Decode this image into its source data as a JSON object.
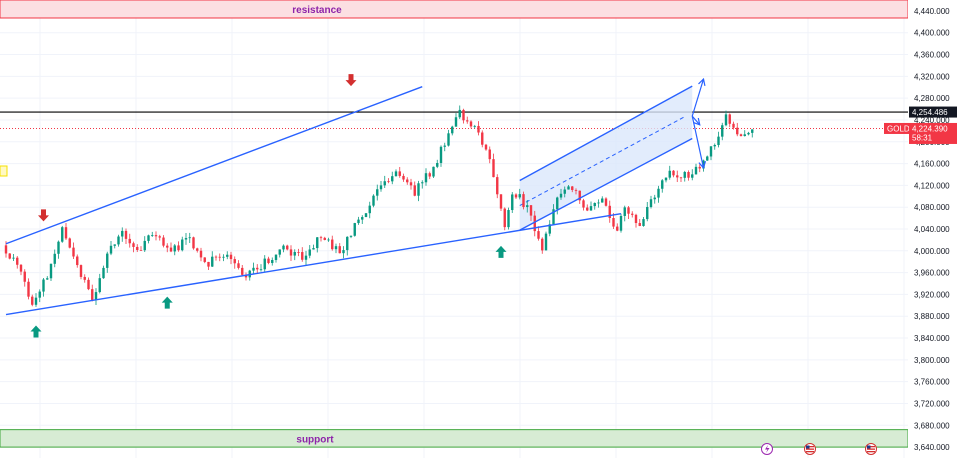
{
  "chart_data": {
    "type": "candlestick",
    "symbol": "GOLD",
    "price_axis": {
      "ylim": [
        3620,
        4460
      ],
      "ticks": [
        "4,440.000",
        "4,400.000",
        "4,360.000",
        "4,320.000",
        "4,280.000",
        "4,240.000",
        "4,200.000",
        "4,160.000",
        "4,120.000",
        "4,080.000",
        "4,040.000",
        "4,000.000",
        "3,960.000",
        "3,920.000",
        "3,880.000",
        "3,840.000",
        "3,800.000",
        "3,760.000",
        "3,720.000",
        "3,680.000",
        "3,640.000"
      ],
      "tick_values": [
        4440,
        4400,
        4360,
        4320,
        4280,
        4240,
        4200,
        4160,
        4120,
        4080,
        4040,
        4000,
        3960,
        3920,
        3880,
        3840,
        3800,
        3760,
        3720,
        3680,
        3640
      ]
    },
    "current_price": {
      "label": "4,224.390",
      "value": 4224.39,
      "countdown": "58:31",
      "color": "#f23645"
    },
    "level_line": {
      "label": "4,254.486",
      "value": 4254.486
    },
    "zones": {
      "resistance": {
        "label": "resistance",
        "from": 4427,
        "to": 4460,
        "fill": "#fcdfe2",
        "border": "#f23645"
      },
      "support": {
        "label": "support",
        "from": 3640,
        "to": 3672,
        "fill": "#d7ecd4",
        "border": "#3fa63c"
      }
    },
    "price_path": {
      "bars": 200,
      "anchors": [
        [
          0,
          4010
        ],
        [
          4,
          3975
        ],
        [
          8,
          3895
        ],
        [
          12,
          3955
        ],
        [
          16,
          4035
        ],
        [
          20,
          3975
        ],
        [
          24,
          3910
        ],
        [
          28,
          3990
        ],
        [
          32,
          4040
        ],
        [
          36,
          4000
        ],
        [
          40,
          4030
        ],
        [
          45,
          4000
        ],
        [
          50,
          4020
        ],
        [
          55,
          3980
        ],
        [
          60,
          4000
        ],
        [
          65,
          3950
        ],
        [
          70,
          3980
        ],
        [
          75,
          4005
        ],
        [
          80,
          3985
        ],
        [
          85,
          4030
        ],
        [
          90,
          3995
        ],
        [
          95,
          4055
        ],
        [
          100,
          4110
        ],
        [
          105,
          4150
        ],
        [
          110,
          4110
        ],
        [
          115,
          4150
        ],
        [
          118,
          4200
        ],
        [
          122,
          4250
        ],
        [
          126,
          4230
        ],
        [
          130,
          4170
        ],
        [
          134,
          4040
        ],
        [
          136,
          4110
        ],
        [
          140,
          4080
        ],
        [
          144,
          4000
        ],
        [
          148,
          4095
        ],
        [
          152,
          4120
        ],
        [
          156,
          4075
        ],
        [
          160,
          4090
        ],
        [
          164,
          4040
        ],
        [
          166,
          4080
        ],
        [
          170,
          4050
        ],
        [
          174,
          4100
        ],
        [
          178,
          4145
        ],
        [
          182,
          4140
        ],
        [
          186,
          4150
        ],
        [
          190,
          4200
        ],
        [
          193,
          4245
        ],
        [
          196,
          4215
        ],
        [
          199,
          4225
        ]
      ]
    },
    "trendlines": [
      {
        "name": "upper-wedge",
        "from": [
          0,
          4013
        ],
        "to": [
          111,
          4301
        ]
      },
      {
        "name": "lower-wedge",
        "from": [
          0,
          3883
        ],
        "to": [
          164,
          4068
        ]
      },
      {
        "name": "channel-upper",
        "from": [
          137,
          4129
        ],
        "to": [
          183,
          4302
        ]
      },
      {
        "name": "channel-lower",
        "from": [
          137,
          4038
        ],
        "to": [
          183,
          4206
        ]
      }
    ],
    "channel_midline": {
      "from": [
        137,
        4083
      ],
      "to": [
        181,
        4246
      ]
    },
    "channel_fill": "#dbe7fb",
    "arrows_down": [
      [
        10,
        4065
      ],
      [
        92,
        4313
      ]
    ],
    "arrows_up": [
      [
        8,
        3852
      ],
      [
        43,
        3905
      ],
      [
        132,
        3998
      ]
    ],
    "projection_arrows": [
      [
        183,
        4247,
        186,
        4315
      ],
      [
        183,
        4247,
        185,
        4231
      ],
      [
        183,
        4247,
        186,
        4152
      ]
    ],
    "colors": {
      "up": "#089981",
      "down": "#f23645",
      "line": "#2962ff",
      "arrow_down": "#d32f2f",
      "arrow_up": "#089981"
    },
    "events": [
      "lightning-icon",
      "us-flag-icon",
      "us-flag-icon"
    ]
  }
}
